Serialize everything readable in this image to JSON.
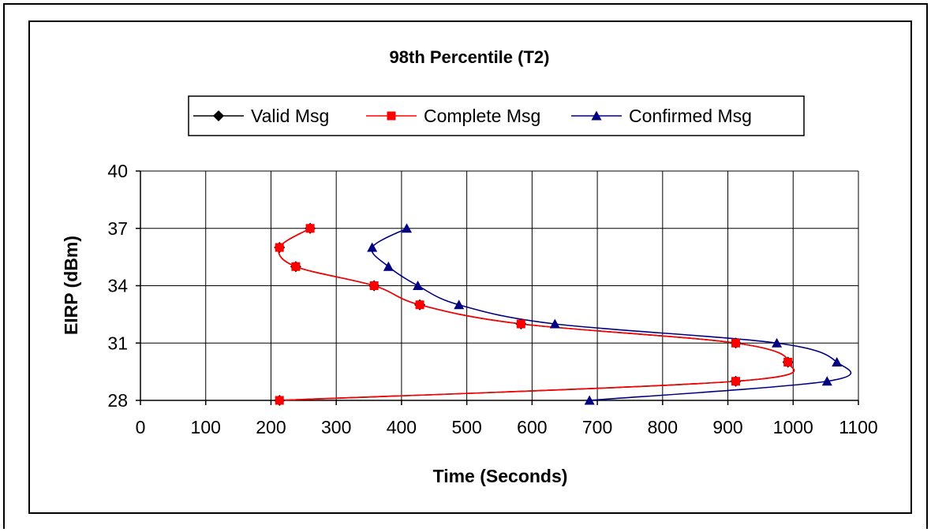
{
  "chart_data": {
    "type": "line",
    "title": "98th Percentile (T2)",
    "xlabel": "Time (Seconds)",
    "ylabel": "EIRP (dBm)",
    "xlim": [
      0,
      1100
    ],
    "ylim": [
      28,
      40
    ],
    "xticks": [
      0,
      100,
      200,
      300,
      400,
      500,
      600,
      700,
      800,
      900,
      1000,
      1100
    ],
    "yticks": [
      28,
      31,
      34,
      37,
      40
    ],
    "grid": true,
    "legend_position": "top",
    "series": [
      {
        "name": "Valid Msg",
        "color": "#000000",
        "marker": "diamond",
        "x": [
          260,
          213,
          238,
          358,
          428,
          583,
          912,
          992,
          912,
          213
        ],
        "y": [
          37,
          36,
          35,
          34,
          33,
          32,
          31,
          30,
          29,
          28
        ]
      },
      {
        "name": "Complete Msg",
        "color": "#ff0000",
        "marker": "square",
        "x": [
          260,
          213,
          238,
          358,
          428,
          583,
          912,
          992,
          912,
          213
        ],
        "y": [
          37,
          36,
          35,
          34,
          33,
          32,
          31,
          30,
          29,
          28
        ]
      },
      {
        "name": "Confirmed Msg",
        "color": "#000080",
        "marker": "triangle",
        "x": [
          408,
          355,
          380,
          425,
          488,
          635,
          975,
          1067,
          1052,
          688
        ],
        "y": [
          37,
          36,
          35,
          34,
          33,
          32,
          31,
          30,
          29,
          28
        ]
      }
    ]
  }
}
